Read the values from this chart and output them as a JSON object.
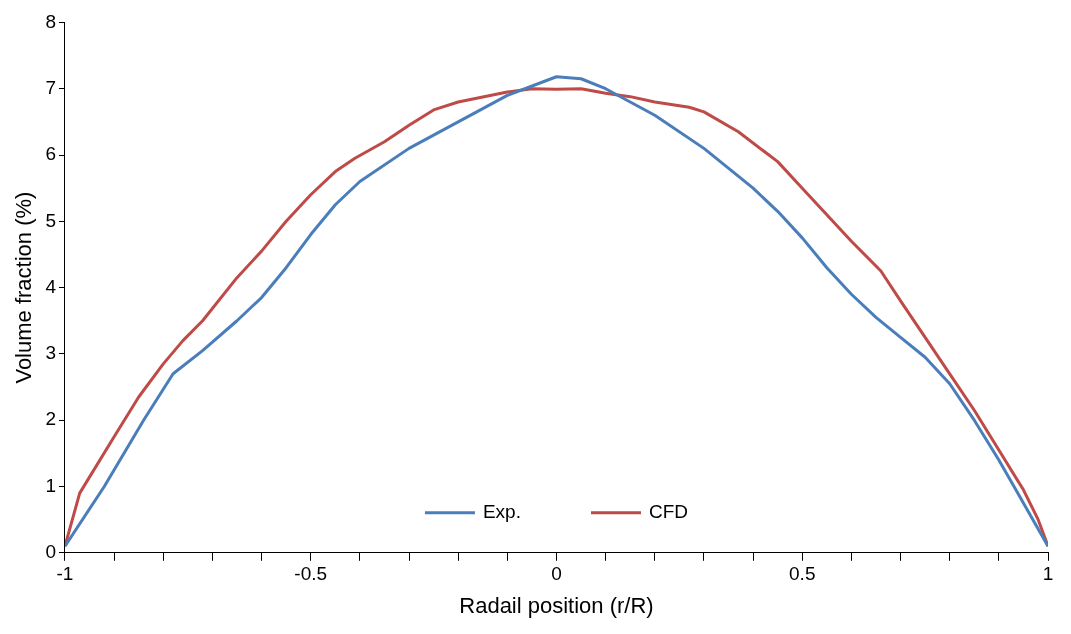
{
  "chart_data": {
    "type": "line",
    "xlabel": "Radail position (r/R)",
    "ylabel": "Volume fraction (%)",
    "xlim": [
      -1,
      1
    ],
    "ylim": [
      0,
      8
    ],
    "xticks": [
      -1,
      {
        "value": -0.9,
        "label": null
      },
      {
        "value": -0.8,
        "label": null
      },
      {
        "value": -0.7,
        "label": null
      },
      {
        "value": -0.6,
        "label": null
      },
      -0.5,
      {
        "value": -0.4,
        "label": null
      },
      {
        "value": -0.3,
        "label": null
      },
      {
        "value": -0.2,
        "label": null
      },
      {
        "value": -0.1,
        "label": null
      },
      0,
      {
        "value": 0.1,
        "label": null
      },
      {
        "value": 0.2,
        "label": null
      },
      {
        "value": 0.3,
        "label": null
      },
      {
        "value": 0.4,
        "label": null
      },
      0.5,
      {
        "value": 0.6,
        "label": null
      },
      {
        "value": 0.7,
        "label": null
      },
      {
        "value": 0.8,
        "label": null
      },
      {
        "value": 0.9,
        "label": null
      },
      1
    ],
    "yticks": [
      0,
      1,
      2,
      3,
      4,
      5,
      6,
      7,
      8
    ],
    "grid": false,
    "legend": "bottom",
    "marker": "none",
    "line_style": "solid",
    "series": [
      {
        "name": "Exp.",
        "color": "#4a7ebb",
        "x": [
          -1,
          -0.92,
          -0.84,
          -0.78,
          -0.72,
          -0.65,
          -0.6,
          -0.55,
          -0.5,
          -0.45,
          -0.4,
          -0.3,
          -0.2,
          -0.1,
          0,
          0.05,
          0.1,
          0.2,
          0.3,
          0.4,
          0.45,
          0.5,
          0.55,
          0.6,
          0.65,
          0.7,
          0.75,
          0.8,
          0.85,
          0.9,
          0.95,
          1
        ],
        "values": [
          0.1,
          1,
          2,
          2.7,
          3.05,
          3.5,
          3.85,
          4.3,
          4.8,
          5.25,
          5.6,
          6.1,
          6.5,
          6.9,
          7.18,
          7.15,
          7,
          6.6,
          6.1,
          5.5,
          5.15,
          4.75,
          4.3,
          3.9,
          3.55,
          3.25,
          2.95,
          2.55,
          2,
          1.4,
          0.75,
          0.1
        ]
      },
      {
        "name": "CFD",
        "color": "#be4b48",
        "x": [
          -1,
          -0.97,
          -0.9,
          -0.85,
          -0.8,
          -0.76,
          -0.72,
          -0.65,
          -0.6,
          -0.55,
          -0.5,
          -0.45,
          -0.41,
          -0.35,
          -0.3,
          -0.25,
          -0.2,
          -0.1,
          -0.05,
          0,
          0.05,
          0.1,
          0.15,
          0.2,
          0.27,
          0.3,
          0.37,
          0.45,
          0.5,
          0.55,
          0.6,
          0.66,
          0.7,
          0.75,
          0.8,
          0.85,
          0.9,
          0.95,
          0.98,
          1
        ],
        "values": [
          0.1,
          0.9,
          1.75,
          2.35,
          2.85,
          3.2,
          3.5,
          4.15,
          4.55,
          5,
          5.4,
          5.75,
          5.95,
          6.2,
          6.45,
          6.68,
          6.8,
          6.95,
          7,
          6.99,
          7,
          6.93,
          6.88,
          6.8,
          6.72,
          6.65,
          6.35,
          5.9,
          5.5,
          5.1,
          4.7,
          4.25,
          3.8,
          3.25,
          2.7,
          2.15,
          1.55,
          0.95,
          0.5,
          0.1
        ]
      }
    ]
  }
}
